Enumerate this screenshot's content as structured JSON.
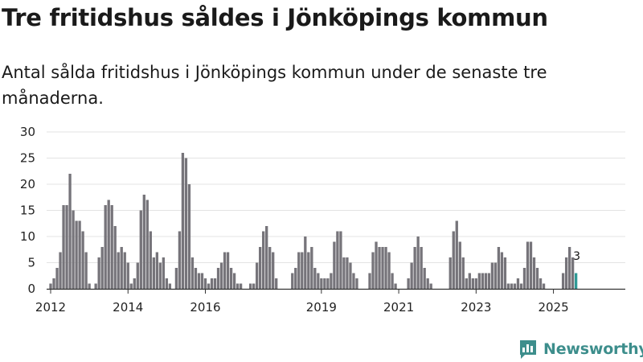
{
  "title": "Tre fritidshus såldes i Jönköpings kommun",
  "subtitle": "Antal sålda fritidshus i Jönköpings kommun under de senaste tre månaderna.",
  "brand": "Newsworthy",
  "colors": {
    "bar": "#76747a",
    "highlight": "#2f9a96",
    "grid": "#e3e3e3",
    "axis": "#333333",
    "brand": "#3d8e8c"
  },
  "icons": {
    "logo": "newsworthy-chart-icon"
  },
  "chart_data": {
    "type": "bar",
    "title": "",
    "xlabel": "",
    "ylabel": "",
    "ylim": [
      0,
      30
    ],
    "yticks": [
      0,
      5,
      10,
      15,
      20,
      25,
      30
    ],
    "xtick_labels": [
      "2012",
      "2014",
      "2016",
      "2019",
      "2021",
      "2023",
      "2025"
    ],
    "x_start": "2011-12",
    "x_end": "2025-09",
    "grid": true,
    "legend": "none",
    "highlight_label": "3",
    "months": [
      "2012-01",
      "2012-02",
      "2012-03",
      "2012-04",
      "2012-05",
      "2012-06",
      "2012-07",
      "2012-08",
      "2012-09",
      "2012-10",
      "2012-11",
      "2012-12",
      "2013-01",
      "2013-02",
      "2013-03",
      "2013-04",
      "2013-05",
      "2013-06",
      "2013-07",
      "2013-08",
      "2013-09",
      "2013-10",
      "2013-11",
      "2013-12",
      "2014-01",
      "2014-02",
      "2014-03",
      "2014-04",
      "2014-05",
      "2014-06",
      "2014-07",
      "2014-08",
      "2014-09",
      "2014-10",
      "2014-11",
      "2014-12",
      "2015-01",
      "2015-02",
      "2015-03",
      "2015-04",
      "2015-05",
      "2015-06",
      "2015-07",
      "2015-08",
      "2015-09",
      "2015-10",
      "2015-11",
      "2015-12",
      "2016-01",
      "2016-02",
      "2016-03",
      "2016-04",
      "2016-05",
      "2016-06",
      "2016-07",
      "2016-08",
      "2016-09",
      "2016-10",
      "2016-11",
      "2016-12",
      "2017-01",
      "2017-02",
      "2017-03",
      "2017-04",
      "2017-05",
      "2017-06",
      "2017-07",
      "2017-08",
      "2017-09",
      "2017-10",
      "2017-11",
      "2017-12",
      "2018-01",
      "2018-02",
      "2018-03",
      "2018-04",
      "2018-05",
      "2018-06",
      "2018-07",
      "2018-08",
      "2018-09",
      "2018-10",
      "2018-11",
      "2018-12",
      "2019-01",
      "2019-02",
      "2019-03",
      "2019-04",
      "2019-05",
      "2019-06",
      "2019-07",
      "2019-08",
      "2019-09",
      "2019-10",
      "2019-11",
      "2019-12",
      "2020-01",
      "2020-02",
      "2020-03",
      "2020-04",
      "2020-05",
      "2020-06",
      "2020-07",
      "2020-08",
      "2020-09",
      "2020-10",
      "2020-11",
      "2020-12",
      "2021-01",
      "2021-02",
      "2021-03",
      "2021-04",
      "2021-05",
      "2021-06",
      "2021-07",
      "2021-08",
      "2021-09",
      "2021-10",
      "2021-11",
      "2021-12",
      "2022-01",
      "2022-02",
      "2022-03",
      "2022-04",
      "2022-05",
      "2022-06",
      "2022-07",
      "2022-08",
      "2022-09",
      "2022-10",
      "2022-11",
      "2022-12",
      "2023-01",
      "2023-02",
      "2023-03",
      "2023-04",
      "2023-05",
      "2023-06",
      "2023-07",
      "2023-08",
      "2023-09",
      "2023-10",
      "2023-11",
      "2023-12",
      "2024-01",
      "2024-02",
      "2024-03",
      "2024-04",
      "2024-05",
      "2024-06",
      "2024-07",
      "2024-08",
      "2024-09",
      "2024-10",
      "2024-11",
      "2024-12",
      "2025-01",
      "2025-02",
      "2025-03",
      "2025-04",
      "2025-05",
      "2025-06",
      "2025-07",
      "2025-08"
    ],
    "values": [
      1,
      2,
      4,
      7,
      16,
      16,
      22,
      15,
      13,
      13,
      11,
      7,
      1,
      0,
      1,
      6,
      8,
      16,
      17,
      16,
      12,
      7,
      8,
      7,
      5,
      1,
      2,
      5,
      15,
      18,
      17,
      11,
      6,
      7,
      5,
      6,
      2,
      1,
      0,
      4,
      11,
      26,
      25,
      20,
      6,
      4,
      3,
      3,
      2,
      1,
      2,
      2,
      4,
      5,
      7,
      7,
      4,
      3,
      1,
      1,
      0,
      0,
      1,
      1,
      5,
      8,
      11,
      12,
      8,
      7,
      2,
      0,
      0,
      0,
      0,
      3,
      4,
      7,
      7,
      10,
      7,
      8,
      4,
      3,
      2,
      2,
      2,
      3,
      9,
      11,
      11,
      6,
      6,
      5,
      3,
      2,
      0,
      0,
      0,
      3,
      7,
      9,
      8,
      8,
      8,
      7,
      3,
      1,
      0,
      0,
      0,
      2,
      5,
      8,
      10,
      8,
      4,
      2,
      1,
      0,
      0,
      0,
      0,
      0,
      6,
      11,
      13,
      9,
      6,
      2,
      3,
      2,
      2,
      3,
      3,
      3,
      3,
      5,
      5,
      8,
      7,
      6,
      1,
      1,
      1,
      2,
      1,
      4,
      9,
      9,
      6,
      4,
      2,
      1,
      0,
      0,
      0,
      0,
      0,
      3,
      6,
      8,
      6,
      3
    ],
    "highlight_index": 163
  }
}
